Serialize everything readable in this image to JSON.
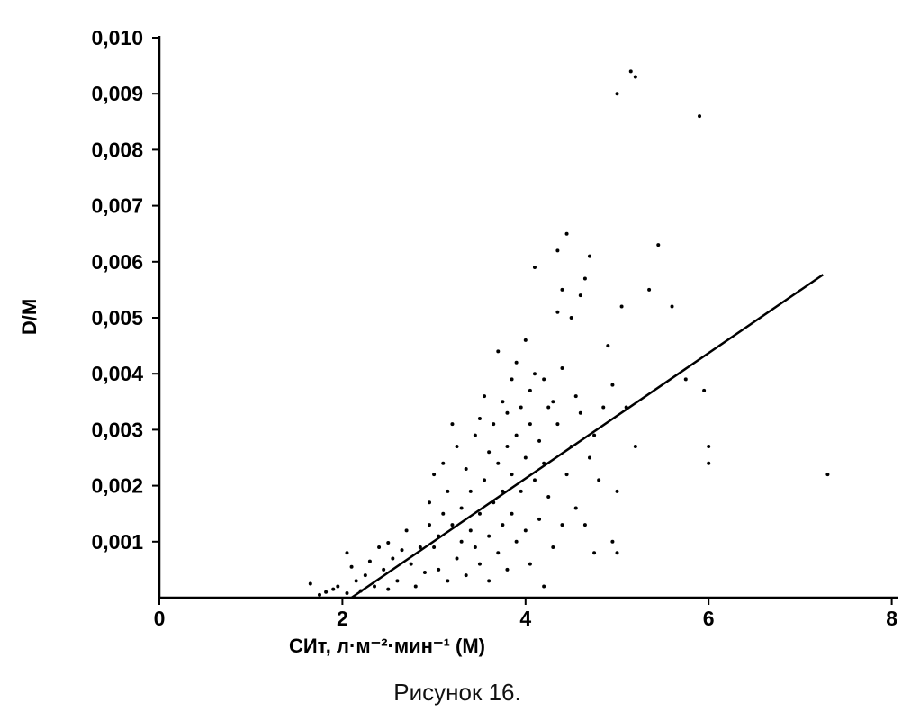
{
  "chart_data": {
    "type": "scatter",
    "caption": "Рисунок 16.",
    "xlabel": "СИт, л·м⁻²·мин⁻¹ (М)",
    "ylabel": "D/M",
    "xlim": [
      0,
      8
    ],
    "ylim": [
      0,
      0.01
    ],
    "x_ticks": [
      "0",
      "2",
      "4",
      "6",
      "8"
    ],
    "y_ticks": [
      "0,001",
      "0,002",
      "0,003",
      "0,004",
      "0,005",
      "0,006",
      "0,007",
      "0,008",
      "0,009",
      "0,010"
    ],
    "regression_line": {
      "x": [
        2.1,
        7.25
      ],
      "y": [
        0.0,
        0.00577
      ]
    },
    "points": [
      [
        1.65,
        0.00025
      ],
      [
        1.75,
        5e-05
      ],
      [
        1.82,
        0.0001
      ],
      [
        1.9,
        0.00015
      ],
      [
        1.95,
        0.0002
      ],
      [
        2.05,
        8e-05
      ],
      [
        2.05,
        0.0008
      ],
      [
        2.1,
        0.00055
      ],
      [
        2.15,
        0.0003
      ],
      [
        2.2,
        0.00012
      ],
      [
        2.25,
        0.0004
      ],
      [
        2.3,
        0.00065
      ],
      [
        2.35,
        0.0002
      ],
      [
        2.4,
        0.0009
      ],
      [
        2.45,
        0.0005
      ],
      [
        2.5,
        0.00015
      ],
      [
        2.5,
        0.00098
      ],
      [
        2.55,
        0.0007
      ],
      [
        2.6,
        0.0003
      ],
      [
        2.65,
        0.00085
      ],
      [
        2.7,
        0.0012
      ],
      [
        2.75,
        0.0006
      ],
      [
        2.8,
        0.0002
      ],
      [
        2.85,
        0.0009
      ],
      [
        2.9,
        0.00045
      ],
      [
        2.95,
        0.0013
      ],
      [
        2.95,
        0.0017
      ],
      [
        3.0,
        0.0009
      ],
      [
        3.0,
        0.0022
      ],
      [
        3.05,
        0.0005
      ],
      [
        3.05,
        0.0011
      ],
      [
        3.1,
        0.0015
      ],
      [
        3.1,
        0.0024
      ],
      [
        3.15,
        0.0003
      ],
      [
        3.15,
        0.0019
      ],
      [
        3.2,
        0.0013
      ],
      [
        3.2,
        0.0031
      ],
      [
        3.25,
        0.0007
      ],
      [
        3.25,
        0.0027
      ],
      [
        3.3,
        0.0016
      ],
      [
        3.3,
        0.001
      ],
      [
        3.35,
        0.0004
      ],
      [
        3.35,
        0.0023
      ],
      [
        3.4,
        0.0019
      ],
      [
        3.4,
        0.0012
      ],
      [
        3.45,
        0.0029
      ],
      [
        3.45,
        0.0009
      ],
      [
        3.5,
        0.0032
      ],
      [
        3.5,
        0.0015
      ],
      [
        3.5,
        0.0006
      ],
      [
        3.55,
        0.0036
      ],
      [
        3.55,
        0.0021
      ],
      [
        3.6,
        0.0026
      ],
      [
        3.6,
        0.0011
      ],
      [
        3.6,
        0.0003
      ],
      [
        3.65,
        0.0031
      ],
      [
        3.65,
        0.0017
      ],
      [
        3.7,
        0.0024
      ],
      [
        3.7,
        0.0044
      ],
      [
        3.7,
        0.0008
      ],
      [
        3.75,
        0.0035
      ],
      [
        3.75,
        0.0019
      ],
      [
        3.75,
        0.0013
      ],
      [
        3.8,
        0.0027
      ],
      [
        3.8,
        0.0033
      ],
      [
        3.8,
        0.0005
      ],
      [
        3.85,
        0.0039
      ],
      [
        3.85,
        0.0022
      ],
      [
        3.85,
        0.0015
      ],
      [
        3.9,
        0.0042
      ],
      [
        3.9,
        0.0029
      ],
      [
        3.9,
        0.001
      ],
      [
        3.95,
        0.0034
      ],
      [
        3.95,
        0.0019
      ],
      [
        4.0,
        0.0046
      ],
      [
        4.0,
        0.0025
      ],
      [
        4.0,
        0.0012
      ],
      [
        4.05,
        0.0037
      ],
      [
        4.05,
        0.0031
      ],
      [
        4.05,
        0.0006
      ],
      [
        4.1,
        0.0059
      ],
      [
        4.1,
        0.004
      ],
      [
        4.1,
        0.0021
      ],
      [
        4.15,
        0.0028
      ],
      [
        4.15,
        0.0014
      ],
      [
        4.2,
        0.0039
      ],
      [
        4.2,
        0.0024
      ],
      [
        4.2,
        0.0002
      ],
      [
        4.25,
        0.0034
      ],
      [
        4.25,
        0.0018
      ],
      [
        4.3,
        0.0035
      ],
      [
        4.3,
        0.0009
      ],
      [
        4.35,
        0.0062
      ],
      [
        4.35,
        0.0051
      ],
      [
        4.35,
        0.0031
      ],
      [
        4.4,
        0.0041
      ],
      [
        4.4,
        0.0055
      ],
      [
        4.4,
        0.0013
      ],
      [
        4.45,
        0.0065
      ],
      [
        4.45,
        0.0022
      ],
      [
        4.5,
        0.005
      ],
      [
        4.5,
        0.0027
      ],
      [
        4.55,
        0.0036
      ],
      [
        4.55,
        0.0016
      ],
      [
        4.6,
        0.0054
      ],
      [
        4.6,
        0.0033
      ],
      [
        4.65,
        0.0057
      ],
      [
        4.65,
        0.0013
      ],
      [
        4.7,
        0.0061
      ],
      [
        4.7,
        0.0025
      ],
      [
        4.75,
        0.0029
      ],
      [
        4.75,
        0.0008
      ],
      [
        4.8,
        0.0021
      ],
      [
        4.85,
        0.0034
      ],
      [
        4.9,
        0.0045
      ],
      [
        4.95,
        0.0038
      ],
      [
        4.95,
        0.001
      ],
      [
        5.0,
        0.009
      ],
      [
        5.0,
        0.0019
      ],
      [
        5.0,
        0.0008
      ],
      [
        5.05,
        0.0052
      ],
      [
        5.1,
        0.0034
      ],
      [
        5.15,
        0.0094
      ],
      [
        5.2,
        0.0093
      ],
      [
        5.2,
        0.0027
      ],
      [
        5.35,
        0.0055
      ],
      [
        5.45,
        0.0063
      ],
      [
        5.6,
        0.0052
      ],
      [
        5.75,
        0.0039
      ],
      [
        5.9,
        0.0086
      ],
      [
        5.95,
        0.0037
      ],
      [
        6.0,
        0.0027
      ],
      [
        6.0,
        0.0024
      ],
      [
        7.3,
        0.0022
      ]
    ]
  }
}
